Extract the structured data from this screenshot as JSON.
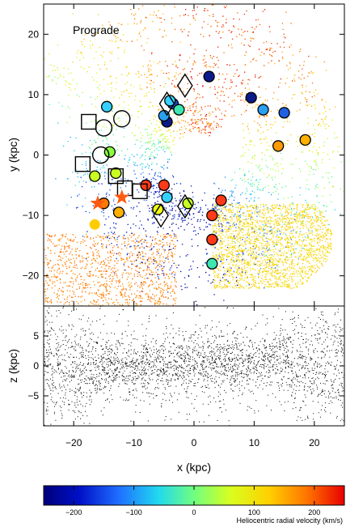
{
  "chart_data": [
    {
      "type": "scatter",
      "panel": "top",
      "annotation": "Prograde",
      "xlim": [
        -25,
        25
      ],
      "ylim": [
        -25,
        25
      ],
      "xlabel": "",
      "ylabel": "y (kpc)",
      "yticks": [
        -20,
        -10,
        0,
        10,
        20
      ],
      "colorbar": {
        "label": "Heliocentric radial velocity (km/s)",
        "range": [
          -250,
          250
        ],
        "ticks": [
          -200,
          -100,
          0,
          100,
          200
        ]
      },
      "markers": [
        {
          "shape": "circle-filled",
          "x": 2.5,
          "y": 13,
          "color": "#0c1a8a"
        },
        {
          "shape": "circle-filled",
          "x": 9.5,
          "y": 9.5,
          "color": "#0c1a8a"
        },
        {
          "shape": "circle-filled",
          "x": -4.5,
          "y": 5.5,
          "color": "#0c1a8a"
        },
        {
          "shape": "circle-filled",
          "x": -3.5,
          "y": 8.5,
          "color": "#1f4ac8"
        },
        {
          "shape": "circle-filled",
          "x": 15,
          "y": 7,
          "color": "#1f5fe0"
        },
        {
          "shape": "circle-filled",
          "x": 11.5,
          "y": 7.5,
          "color": "#2aa0f0"
        },
        {
          "shape": "circle-filled",
          "x": -5,
          "y": 6.5,
          "color": "#2aa0f0"
        },
        {
          "shape": "circle-filled",
          "x": -14.5,
          "y": 8,
          "color": "#35d0ff"
        },
        {
          "shape": "circle-filled",
          "x": -4,
          "y": 9,
          "color": "#35d0ff"
        },
        {
          "shape": "circle-filled",
          "x": -2.5,
          "y": 7.5,
          "color": "#3ee6b0"
        },
        {
          "shape": "circle-filled",
          "x": -14,
          "y": 0.5,
          "color": "#8aff40"
        },
        {
          "shape": "circle-filled",
          "x": -16.5,
          "y": -3.5,
          "color": "#c8ff20"
        },
        {
          "shape": "circle-filled",
          "x": -13,
          "y": -3,
          "color": "#c8ff20"
        },
        {
          "shape": "circle-filled",
          "x": -4.5,
          "y": -7,
          "color": "#35d0ff"
        },
        {
          "shape": "circle-filled",
          "x": -6,
          "y": -9,
          "color": "#f0ff10"
        },
        {
          "shape": "circle-filled",
          "x": -1,
          "y": -8,
          "color": "#c8ff20"
        },
        {
          "shape": "circle-filled",
          "x": 3,
          "y": -18,
          "color": "#3ee6b0"
        },
        {
          "shape": "circle-filled",
          "x": -12.5,
          "y": -9.5,
          "color": "#ffb000"
        },
        {
          "shape": "circle-filled",
          "x": 14,
          "y": 1.5,
          "color": "#ff9a00"
        },
        {
          "shape": "circle-filled",
          "x": 18.5,
          "y": 2.5,
          "color": "#ffb000"
        },
        {
          "shape": "circle-filled",
          "x": -15,
          "y": -8,
          "color": "#ff7a00"
        },
        {
          "shape": "circle-filled",
          "x": -8,
          "y": -5,
          "color": "#ff3a18"
        },
        {
          "shape": "circle-filled",
          "x": -5,
          "y": -5,
          "color": "#ff3a18"
        },
        {
          "shape": "circle-filled",
          "x": 4.5,
          "y": -7.5,
          "color": "#ff3a18"
        },
        {
          "shape": "circle-filled",
          "x": 3,
          "y": -10,
          "color": "#ff3a18"
        },
        {
          "shape": "circle-filled",
          "x": 3,
          "y": -14,
          "color": "#ff3a18"
        },
        {
          "shape": "circle-filled",
          "x": -16.5,
          "y": -11.5,
          "color": "#ffcc00",
          "outline": false
        },
        {
          "shape": "circle-open",
          "x": -15,
          "y": 4.5
        },
        {
          "shape": "circle-open",
          "x": -12,
          "y": 6
        },
        {
          "shape": "circle-open",
          "x": -15.5,
          "y": 0
        },
        {
          "shape": "square-open",
          "x": -17.5,
          "y": 5.5
        },
        {
          "shape": "square-open",
          "x": -18.5,
          "y": -1.5
        },
        {
          "shape": "square-open",
          "x": -13,
          "y": -3.5
        },
        {
          "shape": "square-open",
          "x": -11.5,
          "y": -5.5
        },
        {
          "shape": "square-open",
          "x": -9,
          "y": -6
        },
        {
          "shape": "diamond-open",
          "x": -1.5,
          "y": 11.5
        },
        {
          "shape": "diamond-open",
          "x": -4.5,
          "y": 8.5
        },
        {
          "shape": "diamond-open",
          "x": -5.5,
          "y": -10
        },
        {
          "shape": "diamond-open",
          "x": -1.5,
          "y": -8.5
        },
        {
          "shape": "star",
          "x": -16,
          "y": -8,
          "color": "#ff5a10"
        },
        {
          "shape": "star",
          "x": -12,
          "y": -7,
          "color": "#ff5a10"
        }
      ]
    },
    {
      "type": "scatter",
      "panel": "bottom",
      "xlim": [
        -25,
        25
      ],
      "ylim": [
        -10,
        10
      ],
      "xlabel": "x (kpc)",
      "ylabel": "z (kpc)",
      "xticks": [
        -20,
        -10,
        0,
        10,
        20
      ],
      "yticks": [
        -5,
        0,
        5
      ],
      "color": "#000000"
    }
  ]
}
